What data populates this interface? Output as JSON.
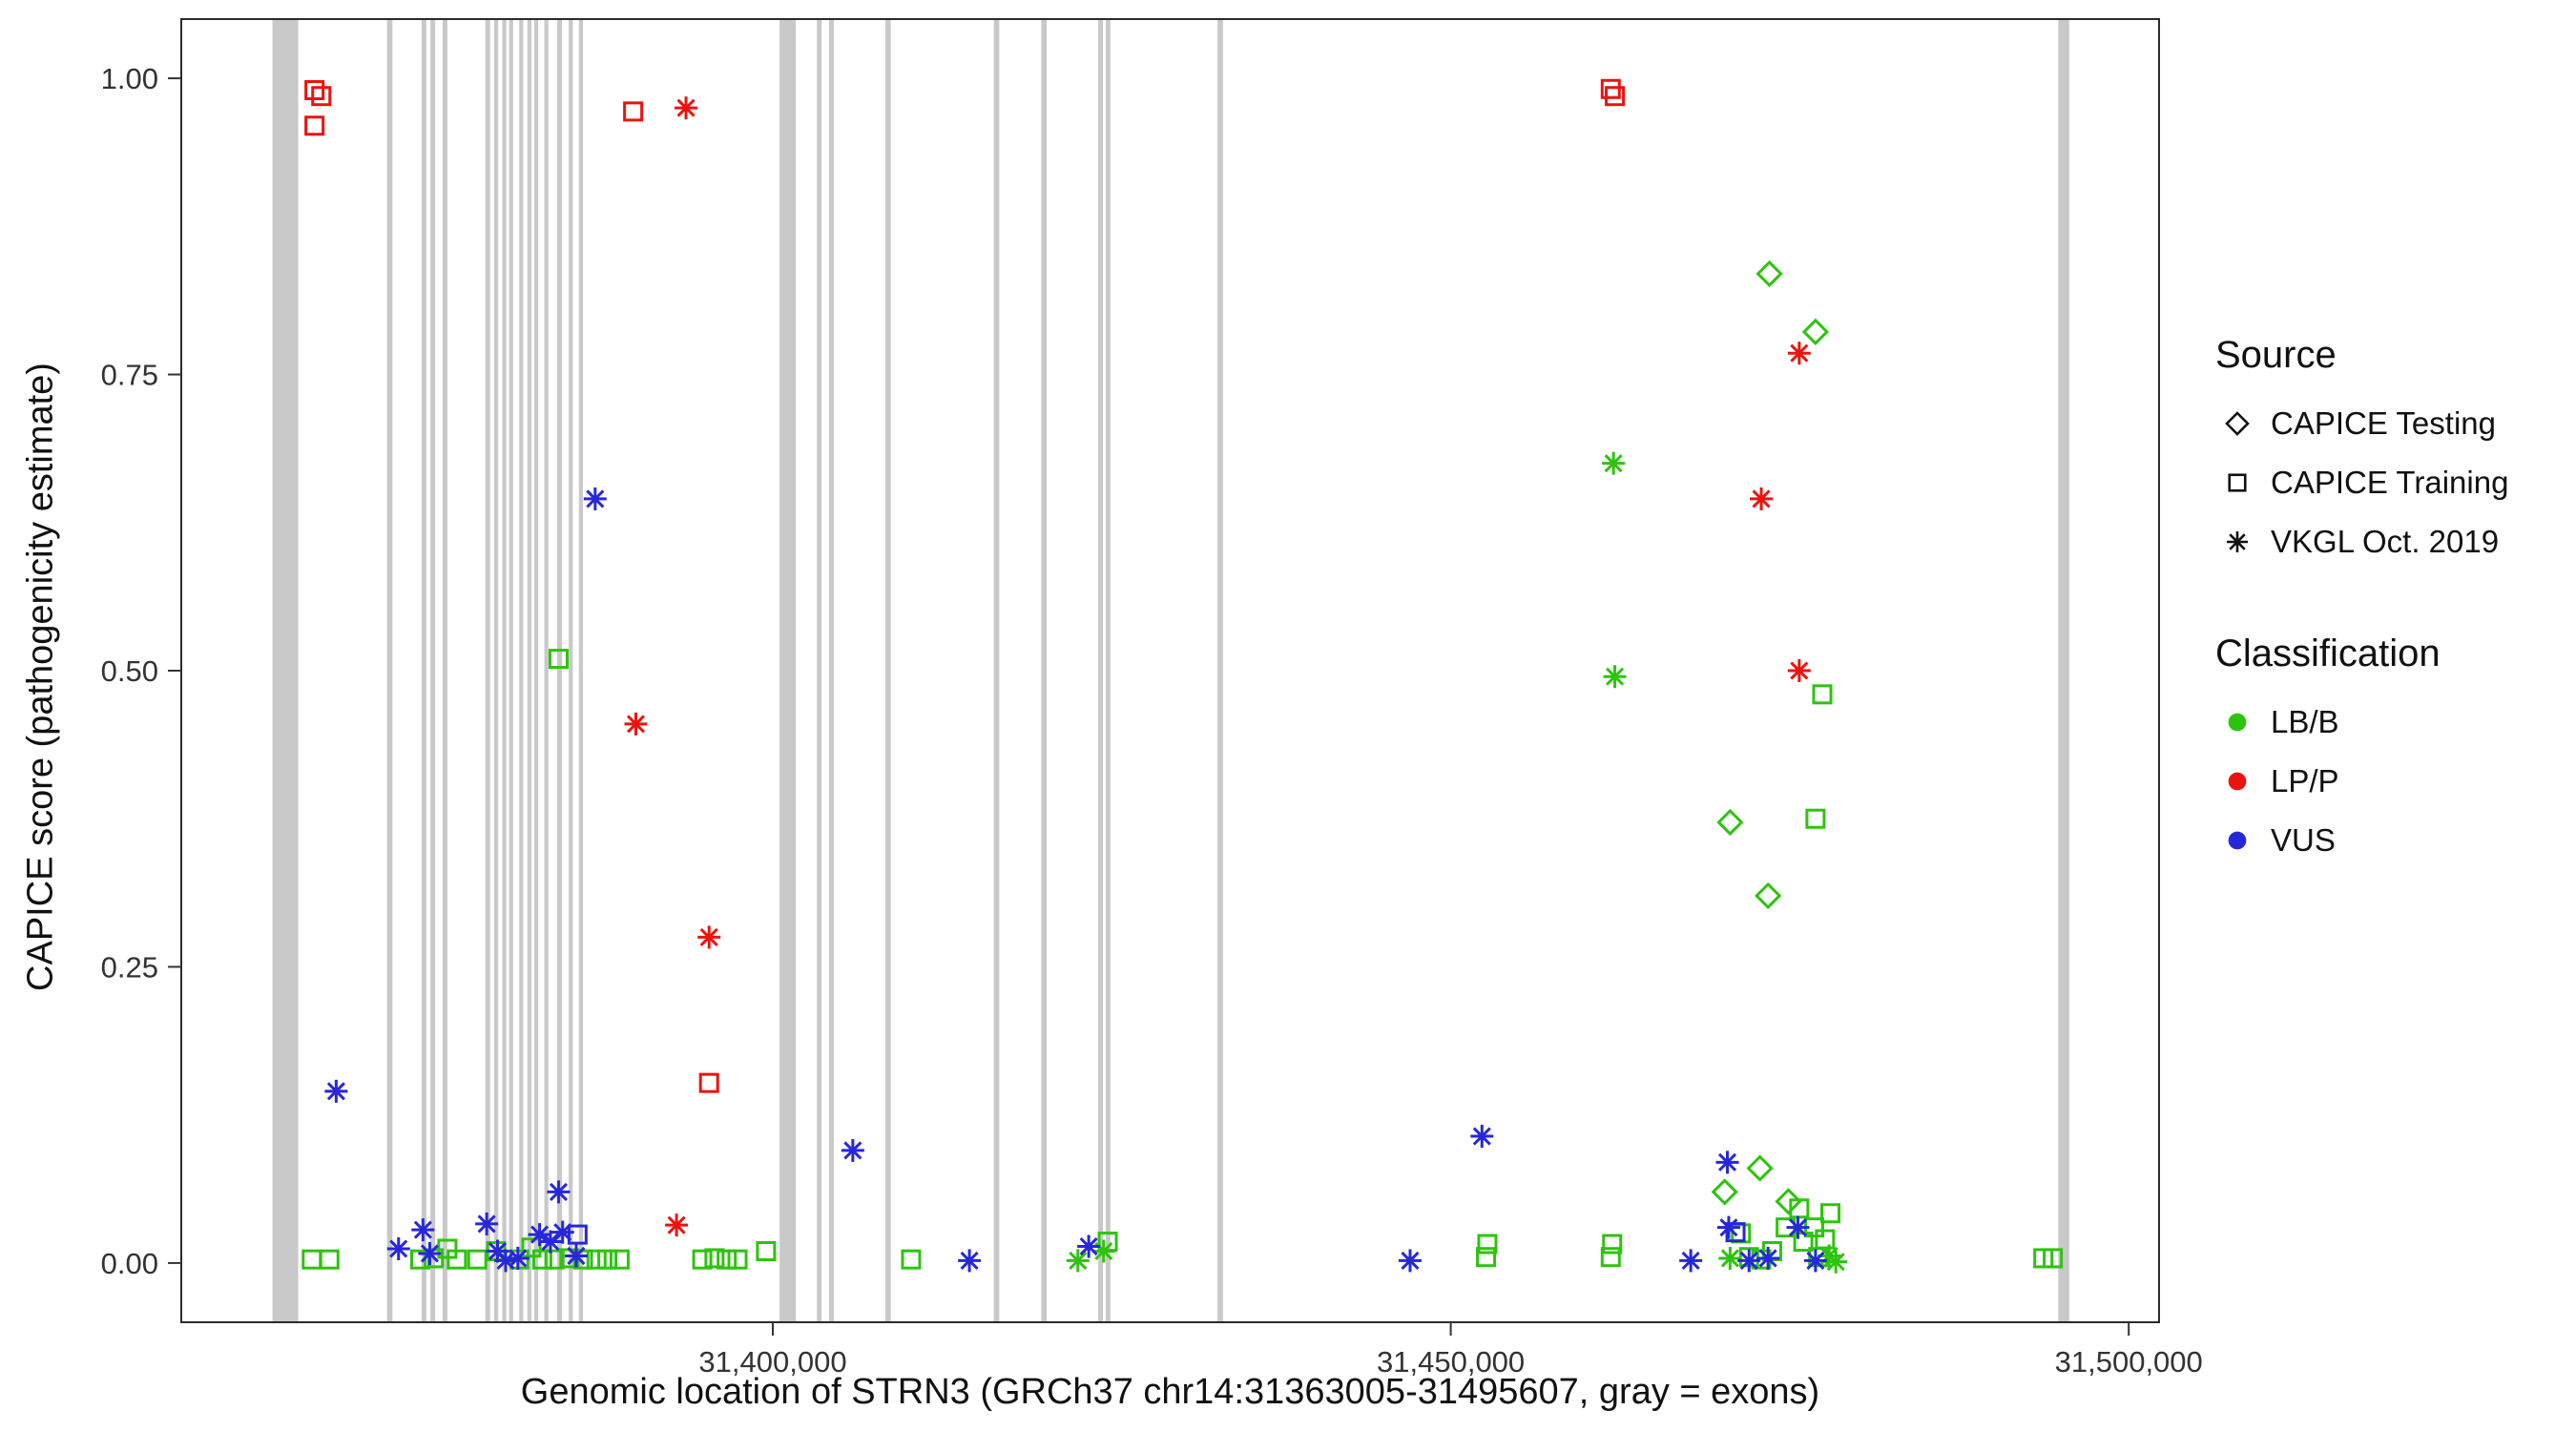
{
  "chart_data": {
    "type": "scatter",
    "title": "",
    "xlabel": "Genomic location of STRN3 (GRCh37 chr14:31363005-31495607, gray = exons)",
    "ylabel": "CAPICE score (pathogenicity estimate)",
    "xlim": [
      31356375,
      31502237
    ],
    "ylim": [
      -0.05,
      1.05
    ],
    "grid": false,
    "legend_position": "right",
    "xticks": [
      {
        "value": 31400000,
        "label": "31,400,000"
      },
      {
        "value": 31450000,
        "label": "31,450,000"
      },
      {
        "value": 31500000,
        "label": "31,500,000"
      }
    ],
    "yticks": [
      {
        "value": 0.0,
        "label": "0.00"
      },
      {
        "value": 0.25,
        "label": "0.25"
      },
      {
        "value": 0.5,
        "label": "0.50"
      },
      {
        "value": 0.75,
        "label": "0.75"
      },
      {
        "value": 1.0,
        "label": "1.00"
      }
    ],
    "exon_color": "#c9c9c9",
    "exons": [
      [
        31363100,
        31365000
      ],
      [
        31371550,
        31371950
      ],
      [
        31374100,
        31374450
      ],
      [
        31374750,
        31375100
      ],
      [
        31375650,
        31376000
      ],
      [
        31378800,
        31379150
      ],
      [
        31379450,
        31379750
      ],
      [
        31380050,
        31380350
      ],
      [
        31380550,
        31380850
      ],
      [
        31381300,
        31381600
      ],
      [
        31381900,
        31382200
      ],
      [
        31382400,
        31382700
      ],
      [
        31383150,
        31383450
      ],
      [
        31384100,
        31384450
      ],
      [
        31384950,
        31385250
      ],
      [
        31385700,
        31386000
      ],
      [
        31400500,
        31401700
      ],
      [
        31403250,
        31403600
      ],
      [
        31404150,
        31404500
      ],
      [
        31408300,
        31408700
      ],
      [
        31416300,
        31416700
      ],
      [
        31419800,
        31420200
      ],
      [
        31424000,
        31424350
      ],
      [
        31424550,
        31424900
      ],
      [
        31432800,
        31433200
      ],
      [
        31494800,
        31495607
      ]
    ],
    "class_colors": {
      "LB/B": "#2dc40e",
      "LP/P": "#ec130e",
      "VUS": "#2727da"
    },
    "source_shapes": {
      "CAPICE Testing": "diamond",
      "CAPICE Training": "square",
      "VKGL Oct. 2019": "asterisk"
    },
    "points": [
      {
        "x": 31366200,
        "y": 0.99,
        "cls": "LP/P",
        "src": "CAPICE Training"
      },
      {
        "x": 31366700,
        "y": 0.985,
        "cls": "LP/P",
        "src": "CAPICE Training"
      },
      {
        "x": 31366200,
        "y": 0.96,
        "cls": "LP/P",
        "src": "CAPICE Training"
      },
      {
        "x": 31389700,
        "y": 0.972,
        "cls": "LP/P",
        "src": "CAPICE Training"
      },
      {
        "x": 31395300,
        "y": 0.152,
        "cls": "LP/P",
        "src": "CAPICE Training"
      },
      {
        "x": 31461800,
        "y": 0.991,
        "cls": "LP/P",
        "src": "CAPICE Training"
      },
      {
        "x": 31462100,
        "y": 0.985,
        "cls": "LP/P",
        "src": "CAPICE Training"
      },
      {
        "x": 31393600,
        "y": 0.975,
        "cls": "LP/P",
        "src": "VKGL Oct. 2019"
      },
      {
        "x": 31389900,
        "y": 0.455,
        "cls": "LP/P",
        "src": "VKGL Oct. 2019"
      },
      {
        "x": 31395300,
        "y": 0.275,
        "cls": "LP/P",
        "src": "VKGL Oct. 2019"
      },
      {
        "x": 31392900,
        "y": 0.032,
        "cls": "LP/P",
        "src": "VKGL Oct. 2019"
      },
      {
        "x": 31475700,
        "y": 0.768,
        "cls": "LP/P",
        "src": "VKGL Oct. 2019"
      },
      {
        "x": 31472900,
        "y": 0.645,
        "cls": "LP/P",
        "src": "VKGL Oct. 2019"
      },
      {
        "x": 31475700,
        "y": 0.5,
        "cls": "LP/P",
        "src": "VKGL Oct. 2019"
      },
      {
        "x": 31473500,
        "y": 0.835,
        "cls": "LB/B",
        "src": "CAPICE Testing"
      },
      {
        "x": 31476900,
        "y": 0.786,
        "cls": "LB/B",
        "src": "CAPICE Testing"
      },
      {
        "x": 31470600,
        "y": 0.372,
        "cls": "LB/B",
        "src": "CAPICE Testing"
      },
      {
        "x": 31473400,
        "y": 0.31,
        "cls": "LB/B",
        "src": "CAPICE Testing"
      },
      {
        "x": 31472800,
        "y": 0.08,
        "cls": "LB/B",
        "src": "CAPICE Testing"
      },
      {
        "x": 31470200,
        "y": 0.06,
        "cls": "LB/B",
        "src": "CAPICE Testing"
      },
      {
        "x": 31474900,
        "y": 0.052,
        "cls": "LB/B",
        "src": "CAPICE Testing"
      },
      {
        "x": 31462000,
        "y": 0.675,
        "cls": "LB/B",
        "src": "VKGL Oct. 2019"
      },
      {
        "x": 31462100,
        "y": 0.495,
        "cls": "LB/B",
        "src": "VKGL Oct. 2019"
      },
      {
        "x": 31422500,
        "y": 0.002,
        "cls": "LB/B",
        "src": "VKGL Oct. 2019"
      },
      {
        "x": 31424400,
        "y": 0.01,
        "cls": "LB/B",
        "src": "VKGL Oct. 2019"
      },
      {
        "x": 31470600,
        "y": 0.004,
        "cls": "LB/B",
        "src": "VKGL Oct. 2019"
      },
      {
        "x": 31477900,
        "y": 0.006,
        "cls": "LB/B",
        "src": "VKGL Oct. 2019"
      },
      {
        "x": 31478400,
        "y": 0.001,
        "cls": "LB/B",
        "src": "VKGL Oct. 2019"
      },
      {
        "x": 31384200,
        "y": 0.51,
        "cls": "LB/B",
        "src": "CAPICE Training"
      },
      {
        "x": 31477400,
        "y": 0.48,
        "cls": "LB/B",
        "src": "CAPICE Training"
      },
      {
        "x": 31476900,
        "y": 0.375,
        "cls": "LB/B",
        "src": "CAPICE Training"
      },
      {
        "x": 31366000,
        "y": 0.003,
        "cls": "LB/B",
        "src": "CAPICE Training"
      },
      {
        "x": 31367300,
        "y": 0.003,
        "cls": "LB/B",
        "src": "CAPICE Training"
      },
      {
        "x": 31374000,
        "y": 0.003,
        "cls": "LB/B",
        "src": "CAPICE Training"
      },
      {
        "x": 31375000,
        "y": 0.004,
        "cls": "LB/B",
        "src": "CAPICE Training"
      },
      {
        "x": 31376000,
        "y": 0.012,
        "cls": "LB/B",
        "src": "CAPICE Training"
      },
      {
        "x": 31376700,
        "y": 0.003,
        "cls": "LB/B",
        "src": "CAPICE Training"
      },
      {
        "x": 31378200,
        "y": 0.003,
        "cls": "LB/B",
        "src": "CAPICE Training"
      },
      {
        "x": 31379600,
        "y": 0.01,
        "cls": "LB/B",
        "src": "CAPICE Training"
      },
      {
        "x": 31381300,
        "y": 0.003,
        "cls": "LB/B",
        "src": "CAPICE Training"
      },
      {
        "x": 31382200,
        "y": 0.013,
        "cls": "LB/B",
        "src": "CAPICE Training"
      },
      {
        "x": 31383000,
        "y": 0.003,
        "cls": "LB/B",
        "src": "CAPICE Training"
      },
      {
        "x": 31383900,
        "y": 0.003,
        "cls": "LB/B",
        "src": "CAPICE Training"
      },
      {
        "x": 31385000,
        "y": 0.004,
        "cls": "LB/B",
        "src": "CAPICE Training"
      },
      {
        "x": 31386000,
        "y": 0.003,
        "cls": "LB/B",
        "src": "CAPICE Training"
      },
      {
        "x": 31387000,
        "y": 0.003,
        "cls": "LB/B",
        "src": "CAPICE Training"
      },
      {
        "x": 31387800,
        "y": 0.003,
        "cls": "LB/B",
        "src": "CAPICE Training"
      },
      {
        "x": 31388700,
        "y": 0.003,
        "cls": "LB/B",
        "src": "CAPICE Training"
      },
      {
        "x": 31394800,
        "y": 0.003,
        "cls": "LB/B",
        "src": "CAPICE Training"
      },
      {
        "x": 31395700,
        "y": 0.004,
        "cls": "LB/B",
        "src": "CAPICE Training"
      },
      {
        "x": 31396600,
        "y": 0.003,
        "cls": "LB/B",
        "src": "CAPICE Training"
      },
      {
        "x": 31397400,
        "y": 0.003,
        "cls": "LB/B",
        "src": "CAPICE Training"
      },
      {
        "x": 31399500,
        "y": 0.01,
        "cls": "LB/B",
        "src": "CAPICE Training"
      },
      {
        "x": 31410200,
        "y": 0.003,
        "cls": "LB/B",
        "src": "CAPICE Training"
      },
      {
        "x": 31424700,
        "y": 0.018,
        "cls": "LB/B",
        "src": "CAPICE Training"
      },
      {
        "x": 31452600,
        "y": 0.005,
        "cls": "LB/B",
        "src": "CAPICE Training"
      },
      {
        "x": 31452700,
        "y": 0.016,
        "cls": "LB/B",
        "src": "CAPICE Training"
      },
      {
        "x": 31461800,
        "y": 0.005,
        "cls": "LB/B",
        "src": "CAPICE Training"
      },
      {
        "x": 31461900,
        "y": 0.016,
        "cls": "LB/B",
        "src": "CAPICE Training"
      },
      {
        "x": 31471400,
        "y": 0.025,
        "cls": "LB/B",
        "src": "CAPICE Training"
      },
      {
        "x": 31472000,
        "y": 0.005,
        "cls": "LB/B",
        "src": "CAPICE Training"
      },
      {
        "x": 31472900,
        "y": 0.003,
        "cls": "LB/B",
        "src": "CAPICE Training"
      },
      {
        "x": 31473700,
        "y": 0.01,
        "cls": "LB/B",
        "src": "CAPICE Training"
      },
      {
        "x": 31474700,
        "y": 0.03,
        "cls": "LB/B",
        "src": "CAPICE Training"
      },
      {
        "x": 31475700,
        "y": 0.046,
        "cls": "LB/B",
        "src": "CAPICE Training"
      },
      {
        "x": 31476000,
        "y": 0.018,
        "cls": "LB/B",
        "src": "CAPICE Training"
      },
      {
        "x": 31476800,
        "y": 0.03,
        "cls": "LB/B",
        "src": "CAPICE Training"
      },
      {
        "x": 31477100,
        "y": 0.005,
        "cls": "LB/B",
        "src": "CAPICE Training"
      },
      {
        "x": 31477600,
        "y": 0.02,
        "cls": "LB/B",
        "src": "CAPICE Training"
      },
      {
        "x": 31478000,
        "y": 0.042,
        "cls": "LB/B",
        "src": "CAPICE Training"
      },
      {
        "x": 31493700,
        "y": 0.004,
        "cls": "LB/B",
        "src": "CAPICE Training"
      },
      {
        "x": 31494400,
        "y": 0.004,
        "cls": "LB/B",
        "src": "CAPICE Training"
      },
      {
        "x": 31367800,
        "y": 0.145,
        "cls": "VUS",
        "src": "VKGL Oct. 2019"
      },
      {
        "x": 31386900,
        "y": 0.645,
        "cls": "VUS",
        "src": "VKGL Oct. 2019"
      },
      {
        "x": 31384200,
        "y": 0.06,
        "cls": "VUS",
        "src": "VKGL Oct. 2019"
      },
      {
        "x": 31405900,
        "y": 0.095,
        "cls": "VUS",
        "src": "VKGL Oct. 2019"
      },
      {
        "x": 31452300,
        "y": 0.107,
        "cls": "VUS",
        "src": "VKGL Oct. 2019"
      },
      {
        "x": 31372400,
        "y": 0.012,
        "cls": "VUS",
        "src": "VKGL Oct. 2019"
      },
      {
        "x": 31374200,
        "y": 0.028,
        "cls": "VUS",
        "src": "VKGL Oct. 2019"
      },
      {
        "x": 31374700,
        "y": 0.008,
        "cls": "VUS",
        "src": "VKGL Oct. 2019"
      },
      {
        "x": 31378900,
        "y": 0.033,
        "cls": "VUS",
        "src": "VKGL Oct. 2019"
      },
      {
        "x": 31379700,
        "y": 0.01,
        "cls": "VUS",
        "src": "VKGL Oct. 2019"
      },
      {
        "x": 31380300,
        "y": 0.002,
        "cls": "VUS",
        "src": "VKGL Oct. 2019"
      },
      {
        "x": 31381200,
        "y": 0.004,
        "cls": "VUS",
        "src": "VKGL Oct. 2019"
      },
      {
        "x": 31382800,
        "y": 0.024,
        "cls": "VUS",
        "src": "VKGL Oct. 2019"
      },
      {
        "x": 31383600,
        "y": 0.018,
        "cls": "VUS",
        "src": "VKGL Oct. 2019"
      },
      {
        "x": 31384500,
        "y": 0.026,
        "cls": "VUS",
        "src": "VKGL Oct. 2019"
      },
      {
        "x": 31385500,
        "y": 0.006,
        "cls": "VUS",
        "src": "VKGL Oct. 2019"
      },
      {
        "x": 31414500,
        "y": 0.002,
        "cls": "VUS",
        "src": "VKGL Oct. 2019"
      },
      {
        "x": 31423300,
        "y": 0.014,
        "cls": "VUS",
        "src": "VKGL Oct. 2019"
      },
      {
        "x": 31447000,
        "y": 0.002,
        "cls": "VUS",
        "src": "VKGL Oct. 2019"
      },
      {
        "x": 31467700,
        "y": 0.002,
        "cls": "VUS",
        "src": "VKGL Oct. 2019"
      },
      {
        "x": 31470400,
        "y": 0.085,
        "cls": "VUS",
        "src": "VKGL Oct. 2019"
      },
      {
        "x": 31470500,
        "y": 0.03,
        "cls": "VUS",
        "src": "VKGL Oct. 2019"
      },
      {
        "x": 31472000,
        "y": 0.002,
        "cls": "VUS",
        "src": "VKGL Oct. 2019"
      },
      {
        "x": 31473400,
        "y": 0.004,
        "cls": "VUS",
        "src": "VKGL Oct. 2019"
      },
      {
        "x": 31475600,
        "y": 0.03,
        "cls": "VUS",
        "src": "VKGL Oct. 2019"
      },
      {
        "x": 31476900,
        "y": 0.002,
        "cls": "VUS",
        "src": "VKGL Oct. 2019"
      },
      {
        "x": 31385600,
        "y": 0.024,
        "cls": "VUS",
        "src": "CAPICE Training"
      },
      {
        "x": 31471000,
        "y": 0.026,
        "cls": "VUS",
        "src": "CAPICE Training"
      }
    ]
  },
  "legend": {
    "source_title": "Source",
    "source_items": [
      {
        "label": "CAPICE Testing",
        "shape": "diamond"
      },
      {
        "label": "CAPICE Training",
        "shape": "square"
      },
      {
        "label": "VKGL Oct. 2019",
        "shape": "asterisk"
      }
    ],
    "classification_title": "Classification",
    "classification_items": [
      {
        "label": "LB/B",
        "color": "#2dc40e"
      },
      {
        "label": "LP/P",
        "color": "#ec130e"
      },
      {
        "label": "VUS",
        "color": "#2727da"
      }
    ]
  }
}
